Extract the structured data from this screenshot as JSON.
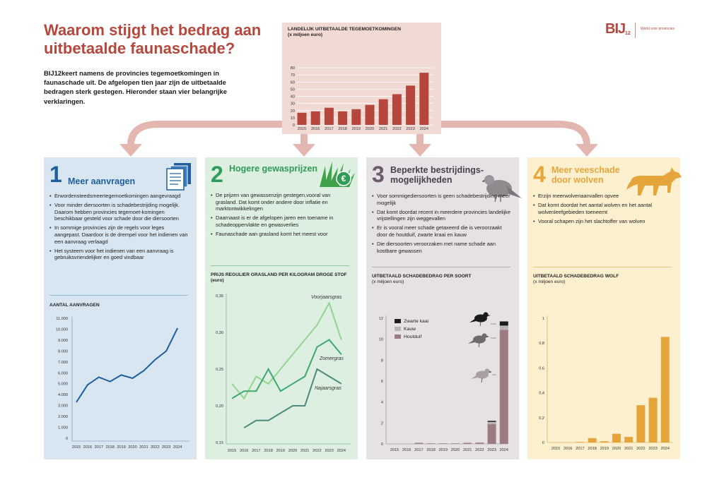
{
  "header": {
    "title": "Waarom stijgt het bedrag aan uitbetaalde faunaschade?",
    "intro": "BIJ12keert namens de provincies tegemoetkomingen in faunaschade uit. De afgelopen tien jaar zijn de uitbetaalde bedragen sterk gestegen. Hieronder staan vier belangrijke verklaringen.",
    "logo_mark": "BIJ",
    "logo_sup": "12",
    "logo_tagline": "Werkt voor provincies"
  },
  "colors": {
    "red": "#b5473d",
    "blue": "#1f5f9e",
    "green": "#2f9c57",
    "purple": "#6b5b6b",
    "orange": "#e6a53a",
    "arrow": "#e3b7b0"
  },
  "panels": [
    {
      "number": "1",
      "title": "Meer aanvragen",
      "icon": "document-icon",
      "bullets": [
        "Erwordensteedsmeertegemoetkomingen aangevraagd",
        "Voor minder diersoorten is schadebestrijding mogelijk. Daarom hebben provincies tegemoet-komingen beschikbaar gesteld voor schade door die diersoorten",
        "In sommige provincies zijn de regels voor leges aangepast. Daardoor is de drempel voor het indienen van een aanvraag verlaagd",
        "Het systeem voor het indienen van een aanvraag is gebruiksvriendelijker en goed vindbaar"
      ]
    },
    {
      "number": "2",
      "title": "Hogere gewasprijzen",
      "icon": "grass-euro-icon",
      "bullets": [
        "De prijzen van gewassenzijn gestegen,vooral van grasland. Dat komt onder andere door inflatie en marktontwikkelingen",
        "Daarnaast is er de afgelopen jaren een toename in schadeoppervlakte en gewasverlies",
        "Faunaschade aan grasland komt het meest voor"
      ]
    },
    {
      "number": "3",
      "title_line1": "Beperkte bestrijdings-",
      "title_line2": "mogelijkheden",
      "icon": "pigeon-icon",
      "bullets": [
        "Voor sommigediersoorten is geen schadebestrijding meer mogelijk",
        "Dat komt doordat recent in meerdere provincies landelijke vrijstellingen zijn weggevallen",
        "Er is vooral meer schade getaxeerd die is veroorzaakt door de houtduif, zwarte kraai en kauw",
        "Die diersoorten veroorzaken met name schade aan kostbare gewassen"
      ]
    },
    {
      "number": "4",
      "title_line1": "Meer veeschade",
      "title_line2": "door wolven",
      "icon": "wolf-icon",
      "bullets": [
        "Erzijn meerwolvenaanvallen opvee",
        "Dat komt doordat het aantal wolven en het aantal wolvenleefgebieden toeneemt",
        "Vooral schapen zijn het slachtoffer van wolven"
      ]
    }
  ],
  "chart_data": [
    {
      "id": "landelijk",
      "type": "bar",
      "title": "LANDELIJK UITBETAALDE TEGEMOETKOMINGEN",
      "subtitle": "(x miljoen euro)",
      "categories": [
        "2015",
        "2016",
        "2017",
        "2018",
        "2019",
        "2020",
        "2021",
        "2022",
        "2023",
        "2024"
      ],
      "values": [
        17,
        19,
        24,
        19,
        22,
        28,
        36,
        43,
        55,
        73
      ],
      "ylim": [
        0,
        80
      ],
      "yticks": [
        0,
        10,
        20,
        30,
        40,
        50,
        60,
        70,
        80
      ],
      "color": "#b5473d"
    },
    {
      "id": "aanvragen",
      "type": "line",
      "title": "AANTAL AANVRAGEN",
      "x": [
        "2015",
        "2016",
        "2017",
        "2018",
        "2019",
        "2020",
        "2021",
        "2022",
        "2023",
        "2024"
      ],
      "values": [
        3300,
        4900,
        5600,
        5200,
        5800,
        5500,
        6200,
        7200,
        8000,
        10100
      ],
      "ylim": [
        0,
        11000
      ],
      "yticks": [
        0,
        1000,
        2000,
        3000,
        4000,
        5000,
        6000,
        7000,
        8000,
        9000,
        10000,
        11000
      ],
      "ytick_labels": [
        "0",
        "1.000",
        "2.000",
        "3.000",
        "4.000",
        "5.000",
        "6.000",
        "7.000",
        "8.000",
        "9.000",
        "10.000",
        "11.000"
      ],
      "color": "#1f5f9e"
    },
    {
      "id": "grasland",
      "type": "line",
      "title": "PRIJS REGULIER GRASLAND PER KILOGRAM DROGE STOF (euro)",
      "x": [
        "2015",
        "2016",
        "2017",
        "2018",
        "2019",
        "2020",
        "2021",
        "2022",
        "2023",
        "2024"
      ],
      "ylim": [
        0.15,
        0.35
      ],
      "yticks": [
        0.15,
        0.2,
        0.25,
        0.3,
        0.35
      ],
      "ytick_labels": [
        "0,15",
        "0,20",
        "0,25",
        "0,30",
        "0,35"
      ],
      "series": [
        {
          "name": "Voorjaarsgras",
          "values": [
            0.23,
            0.21,
            0.24,
            0.23,
            0.25,
            0.27,
            0.29,
            0.31,
            0.34,
            0.29
          ],
          "color": "#93d48f"
        },
        {
          "name": "Zomergras",
          "values": [
            0.21,
            0.22,
            0.22,
            0.25,
            0.22,
            0.23,
            0.24,
            0.28,
            0.29,
            0.27
          ],
          "color": "#3fa870"
        },
        {
          "name": "Najaarsgras",
          "values": [
            null,
            0.17,
            0.18,
            0.18,
            0.19,
            0.2,
            0.2,
            0.25,
            0.24,
            0.23
          ],
          "color": "#4d8a7d"
        }
      ]
    },
    {
      "id": "soort",
      "type": "bar",
      "title": "UITBETAALD SCHADEBEDRAG PER SOORT",
      "subtitle": "(x miljoen euro)",
      "categories": [
        "2015",
        "2016",
        "2017",
        "2018",
        "2019",
        "2020",
        "2021",
        "2022",
        "2023",
        "2024"
      ],
      "ylim": [
        0,
        12
      ],
      "yticks": [
        0,
        2,
        4,
        6,
        8,
        10,
        12
      ],
      "series": [
        {
          "name": "Houtduif",
          "values": [
            0,
            0,
            0.1,
            0.05,
            0.05,
            0.05,
            0.1,
            0.1,
            1.9,
            10.9
          ],
          "color": "#9c7c80"
        },
        {
          "name": "Kauw",
          "values": [
            0,
            0,
            0,
            0,
            0,
            0,
            0,
            0.05,
            0.2,
            0.4
          ],
          "color": "#b9b4b6"
        },
        {
          "name": "Zwarte kaai",
          "values": [
            0,
            0,
            0,
            0,
            0,
            0,
            0,
            0,
            0.1,
            0.4
          ],
          "color": "#1c1c1c"
        }
      ],
      "legend_order": [
        "Zwarte kaai",
        "Kauw",
        "Houtduif"
      ],
      "legend_position": "top-left"
    },
    {
      "id": "wolf",
      "type": "bar",
      "title": "UITBETAALD SCHADEBEDRAG WOLF",
      "subtitle": "(x miljoen euro)",
      "categories": [
        "2015",
        "2016",
        "2017",
        "2018",
        "2019",
        "2020",
        "2021",
        "2022",
        "2023",
        "2024"
      ],
      "values": [
        0,
        0,
        0.005,
        0.035,
        0.01,
        0.07,
        0.045,
        0.3,
        0.36,
        0.85
      ],
      "ylim": [
        0,
        1
      ],
      "yticks": [
        0,
        0.2,
        0.4,
        0.6,
        0.8,
        1
      ],
      "ytick_labels": [
        "0",
        "0,2",
        "0,4",
        "0,6",
        "0,8",
        "1"
      ],
      "color": "#e6a53a"
    }
  ]
}
